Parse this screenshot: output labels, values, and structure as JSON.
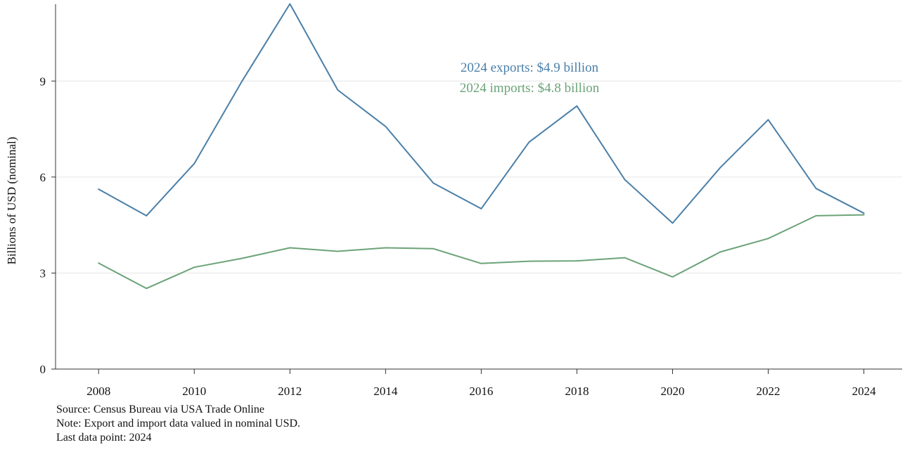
{
  "chart_data": {
    "type": "line",
    "title": "",
    "xlabel": "",
    "ylabel": "Billions of USD (nominal)",
    "x": [
      2008,
      2009,
      2010,
      2011,
      2012,
      2013,
      2014,
      2015,
      2016,
      2017,
      2018,
      2019,
      2020,
      2021,
      2022,
      2023,
      2024
    ],
    "x_ticks": [
      2008,
      2010,
      2012,
      2014,
      2016,
      2018,
      2020,
      2022,
      2024
    ],
    "y_ticks": [
      0,
      3,
      6,
      9
    ],
    "ylim": [
      0,
      11.4
    ],
    "xlim": [
      2007.1,
      2024.8
    ],
    "grid": "horizontal",
    "series": [
      {
        "key": "exports",
        "color": "#4a7fa8",
        "values": [
          5.62,
          4.79,
          6.42,
          9.0,
          11.41,
          8.72,
          7.58,
          5.81,
          5.01,
          7.09,
          8.22,
          5.92,
          4.56,
          6.3,
          7.79,
          5.64,
          4.87
        ]
      },
      {
        "key": "imports",
        "color": "#6ba378",
        "values": [
          3.31,
          2.52,
          3.18,
          3.46,
          3.79,
          3.68,
          3.79,
          3.76,
          3.3,
          3.37,
          3.38,
          3.48,
          2.88,
          3.66,
          4.08,
          4.79,
          4.82
        ]
      }
    ],
    "annotations": [
      {
        "text": "2024 exports: $4.9 billion",
        "color": "#4a7fa8"
      },
      {
        "text": "2024 imports: $4.8 billion",
        "color": "#6ba378"
      }
    ]
  },
  "footer": {
    "source": "Source: Census Bureau via USA Trade Online",
    "note": "Note: Export and import data valued in nominal USD.",
    "last_point": "Last data point: 2024"
  }
}
